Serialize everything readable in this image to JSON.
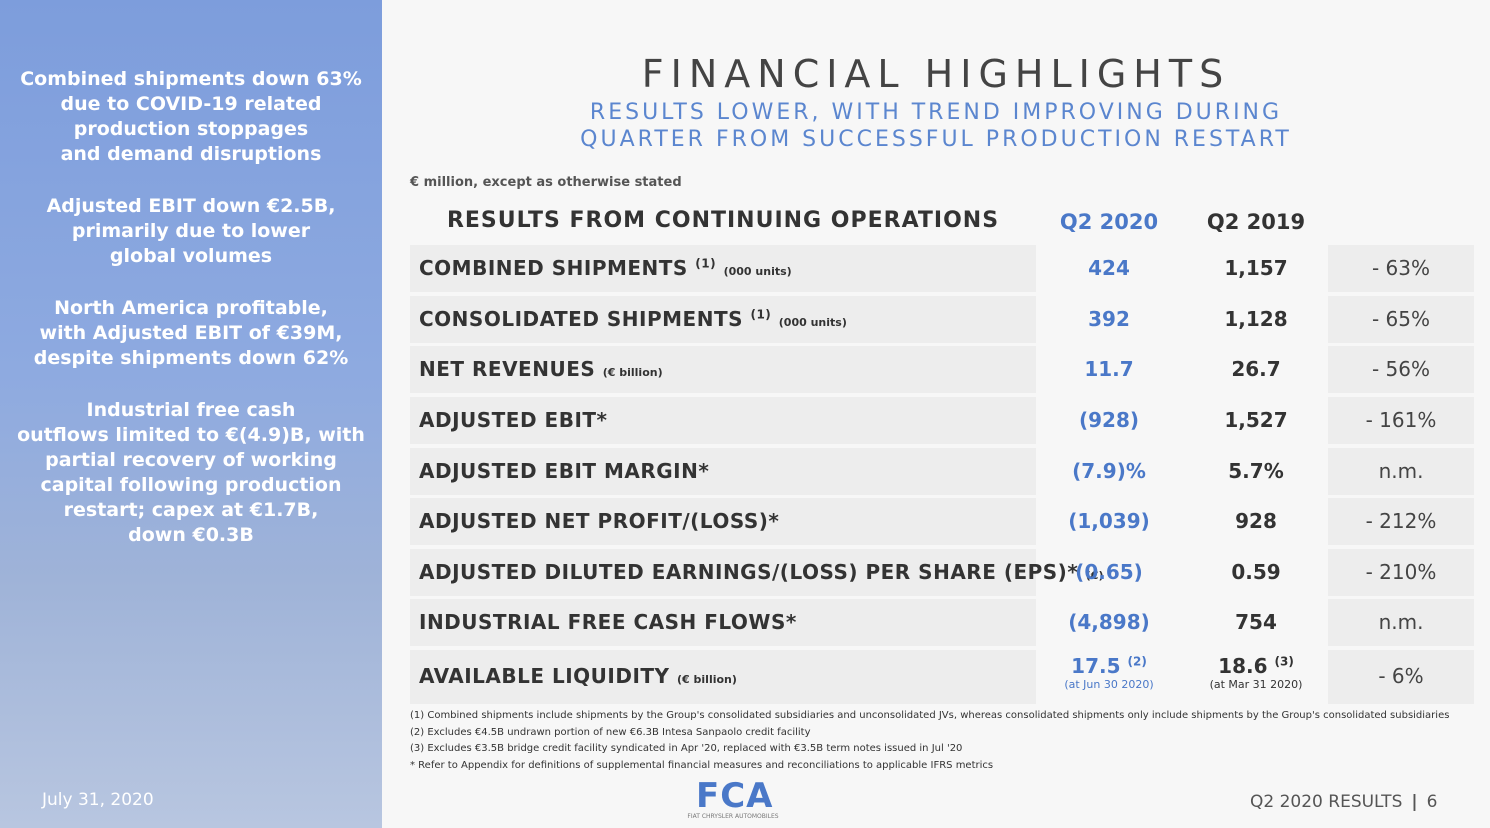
{
  "sidebar": {
    "points": [
      [
        "Combined shipments down 63%",
        "due to COVID-19 related",
        "production stoppages",
        "and demand disruptions"
      ],
      [
        "Adjusted EBIT down €2.5B,",
        "primarily due to lower",
        "global volumes"
      ],
      [
        "North America profitable,",
        "with Adjusted EBIT of €39M,",
        "despite shipments down 62%"
      ],
      [
        "Industrial free cash",
        "outflows limited to €(4.9)B, with",
        "partial recovery of working",
        "capital following production",
        "restart; capex at €1.7B,",
        "down €0.3B"
      ]
    ],
    "date": "July 31, 2020"
  },
  "header": {
    "title": "FINANCIAL HIGHLIGHTS",
    "subtitle": [
      "RESULTS LOWER, WITH TREND IMPROVING DURING",
      "QUARTER FROM SUCCESSFUL PRODUCTION RESTART"
    ]
  },
  "note": "€ million, except as otherwise stated",
  "table": {
    "columns": [
      "RESULTS FROM CONTINUING OPERATIONS",
      "Q2 2020",
      "Q2 2019"
    ],
    "rows": [
      {
        "label": "COMBINED SHIPMENTS",
        "sup": "(1)",
        "unit": "(000 units)",
        "cur": "424",
        "prev": "1,157",
        "change": "- 63%"
      },
      {
        "label": "CONSOLIDATED SHIPMENTS",
        "sup": "(1)",
        "unit": "(000 units)",
        "cur": "392",
        "prev": "1,128",
        "change": "- 65%"
      },
      {
        "label": "NET REVENUES",
        "unit": "(€ billion)",
        "cur": "11.7",
        "prev": "26.7",
        "change": "- 56%"
      },
      {
        "label": "ADJUSTED EBIT*",
        "cur": "(928)",
        "prev": "1,527",
        "change": "- 161%"
      },
      {
        "label": "ADJUSTED EBIT MARGIN*",
        "cur": "(7.9)%",
        "prev": "5.7%",
        "change": "n.m."
      },
      {
        "label": "ADJUSTED NET PROFIT/(LOSS)*",
        "cur": "(1,039)",
        "prev": "928",
        "change": "- 212%"
      },
      {
        "label": "ADJUSTED DILUTED EARNINGS/(LOSS) PER SHARE (EPS)*",
        "unit": "(€)",
        "cur": "(0.65)",
        "prev": "0.59",
        "change": "- 210%"
      },
      {
        "label": "INDUSTRIAL FREE CASH FLOWS*",
        "cur": "(4,898)",
        "prev": "754",
        "change": "n.m."
      },
      {
        "label": "AVAILABLE LIQUIDITY",
        "unit": "(€ billion)",
        "cur": "17.5",
        "cur_sup": "(2)",
        "cur_note": "(at Jun 30 2020)",
        "prev": "18.6",
        "prev_sup": "(3)",
        "prev_note": "(at Mar 31 2020)",
        "change": "- 6%"
      }
    ]
  },
  "footnotes": [
    "(1)  Combined shipments include shipments by the Group's consolidated subsidiaries and unconsolidated JVs, whereas consolidated shipments only include shipments by the Group's consolidated subsidiaries",
    "(2)  Excludes €4.5B undrawn portion of new €6.3B Intesa Sanpaolo credit facility",
    "(3)  Excludes €3.5B bridge credit facility syndicated in Apr '20, replaced with €3.5B term notes issued in Jul '20",
    "* Refer to Appendix for definitions of supplemental financial measures and reconciliations to applicable IFRS metrics"
  ],
  "logo": {
    "mark": "FCA",
    "name": "FIAT CHRYSLER AUTOMOBILES"
  },
  "footer": {
    "label": "Q2 2020 RESULTS",
    "page": "6"
  }
}
